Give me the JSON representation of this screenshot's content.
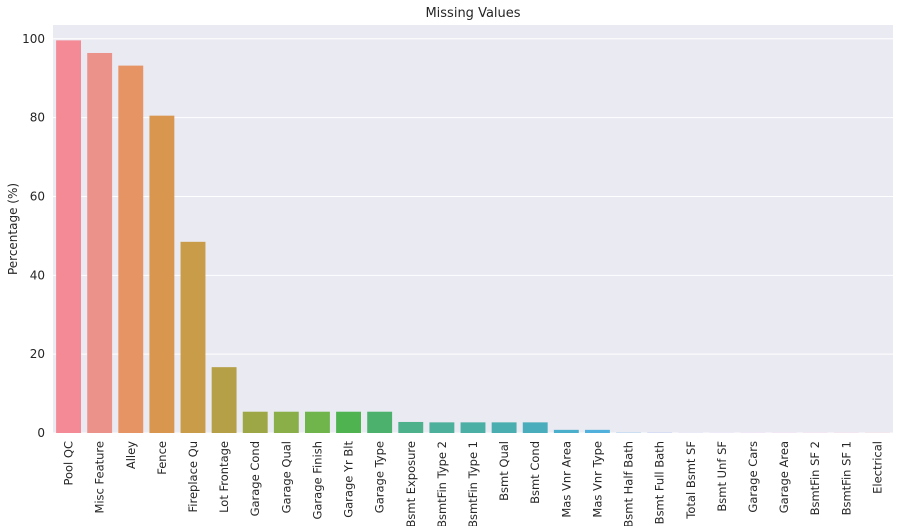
{
  "chart_data": {
    "type": "bar",
    "title": "Missing Values",
    "xlabel": "",
    "ylabel": "Percentage (%)",
    "ylim": [
      0,
      103.5
    ],
    "yticks": [
      0,
      20,
      40,
      60,
      80,
      100
    ],
    "grid": true,
    "categories": [
      "Pool QC",
      "Misc Feature",
      "Alley",
      "Fence",
      "Fireplace Qu",
      "Lot Frontage",
      "Garage Cond",
      "Garage Qual",
      "Garage Finish",
      "Garage Yr Blt",
      "Garage Type",
      "Bsmt Exposure",
      "BsmtFin Type 2",
      "BsmtFin Type 1",
      "Bsmt Qual",
      "Bsmt Cond",
      "Mas Vnr Area",
      "Mas Vnr Type",
      "Bsmt Half Bath",
      "Bsmt Full Bath",
      "Total Bsmt SF",
      "Bsmt Unf SF",
      "Garage Cars",
      "Garage Area",
      "BsmtFin SF 2",
      "BsmtFin SF 1",
      "Electrical"
    ],
    "values": [
      99.6,
      96.4,
      93.2,
      80.5,
      48.5,
      16.7,
      5.4,
      5.4,
      5.4,
      5.4,
      5.4,
      2.8,
      2.7,
      2.7,
      2.7,
      2.7,
      0.8,
      0.8,
      0.07,
      0.07,
      0.03,
      0.03,
      0.03,
      0.03,
      0.03,
      0.03,
      0.03
    ],
    "colors": [
      "#f38a96",
      "#eb928a",
      "#e69464",
      "#d9964e",
      "#c99c4a",
      "#b5a047",
      "#9ea745",
      "#8aaf48",
      "#70b44c",
      "#4fb350",
      "#4cb16c",
      "#4db18b",
      "#4cb09a",
      "#4bafa6",
      "#4aaeb0",
      "#4aadbb",
      "#4aafcb",
      "#52b1dc",
      "#6db0ea",
      "#95aff0",
      "#acaaf2",
      "#c2a2f0",
      "#d798ee",
      "#e48ee0",
      "#ea8ec6",
      "#ee8eb3",
      "#f28ba3"
    ],
    "background_color": "#eaeaf2",
    "grid_color": "#ffffff"
  }
}
